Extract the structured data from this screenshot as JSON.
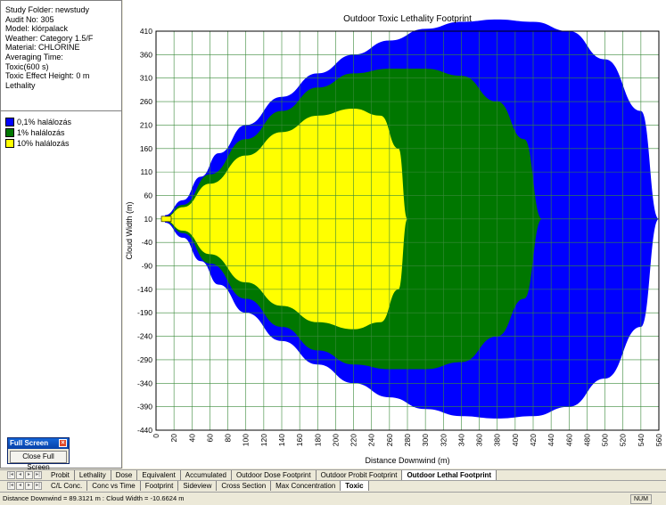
{
  "info": {
    "lines": [
      "Study Folder: newstudy",
      "Audit No: 305",
      "Model: klórpalack",
      "Weather: Category 1.5/F",
      "Material: CHLORINE",
      "Averaging Time:",
      "Toxic(600 s)",
      "Toxic Effect Height: 0 m",
      "Lethality"
    ]
  },
  "legend": [
    {
      "label": "0,1% halálozás",
      "color": "#0000ff"
    },
    {
      "label": "1% halálozás",
      "color": "#007700"
    },
    {
      "label": "10% halálozás",
      "color": "#ffff00"
    }
  ],
  "chart_data": {
    "type": "area",
    "title": "Outdoor Toxic Lethality Footprint",
    "xlabel": "Distance Downwind (m)",
    "ylabel": "Cloud Width (m)",
    "xlim": [
      0,
      560
    ],
    "ylim": [
      -440,
      410
    ],
    "x_ticks": [
      0,
      20,
      40,
      60,
      80,
      100,
      120,
      140,
      160,
      180,
      200,
      220,
      240,
      260,
      280,
      300,
      320,
      340,
      360,
      380,
      400,
      420,
      440,
      460,
      480,
      500,
      520,
      540,
      560
    ],
    "y_ticks": [
      410,
      360,
      310,
      260,
      210,
      160,
      110,
      60,
      10,
      -40,
      -90,
      -140,
      -190,
      -240,
      -290,
      -340,
      -390,
      -440
    ],
    "grid": true,
    "series": [
      {
        "name": "0,1% halálozás",
        "color": "#0000ff",
        "x": [
          10,
          30,
          50,
          70,
          100,
          140,
          180,
          220,
          260,
          300,
          340,
          380,
          420,
          460,
          500,
          540,
          560
        ],
        "half_width": [
          8,
          40,
          90,
          140,
          200,
          260,
          310,
          350,
          380,
          405,
          420,
          425,
          420,
          400,
          340,
          230,
          0
        ]
      },
      {
        "name": "1% halálozás",
        "color": "#007700",
        "x": [
          10,
          30,
          60,
          100,
          140,
          180,
          220,
          260,
          300,
          340,
          380,
          410,
          430
        ],
        "half_width": [
          5,
          30,
          95,
          170,
          230,
          280,
          310,
          320,
          320,
          305,
          250,
          170,
          0
        ]
      },
      {
        "name": "10% halálozás",
        "color": "#ffff00",
        "x": [
          10,
          30,
          60,
          100,
          140,
          180,
          220,
          250,
          270,
          280
        ],
        "half_width": [
          3,
          25,
          75,
          135,
          185,
          220,
          235,
          220,
          150,
          0
        ]
      }
    ]
  },
  "fullscreen": {
    "title": "Full Screen",
    "button": "Close Full Screen"
  },
  "tabs_row1": [
    {
      "label": "Probit",
      "active": false
    },
    {
      "label": "Lethality",
      "active": false
    },
    {
      "label": "Dose",
      "active": false
    },
    {
      "label": "Equivalent",
      "active": false
    },
    {
      "label": "Accumulated",
      "active": false
    },
    {
      "label": "Outdoor Dose Footprint",
      "active": false
    },
    {
      "label": "Outdoor Probit Footprint",
      "active": false
    },
    {
      "label": "Outdoor Lethal Footprint",
      "active": true
    }
  ],
  "tabs_row2": [
    {
      "label": "C/L Conc.",
      "active": false
    },
    {
      "label": "Conc vs Time",
      "active": false
    },
    {
      "label": "Footprint",
      "active": false
    },
    {
      "label": "Sideview",
      "active": false
    },
    {
      "label": "Cross Section",
      "active": false
    },
    {
      "label": "Max Concentration",
      "active": false
    },
    {
      "label": "Toxic",
      "active": true
    }
  ],
  "status": {
    "text": "Distance Downwind = 89.3121 m : Cloud Width = -10.6624 m",
    "num": "NUM"
  },
  "nav_icons": [
    "first-icon",
    "prev-icon",
    "next-icon",
    "last-icon"
  ]
}
